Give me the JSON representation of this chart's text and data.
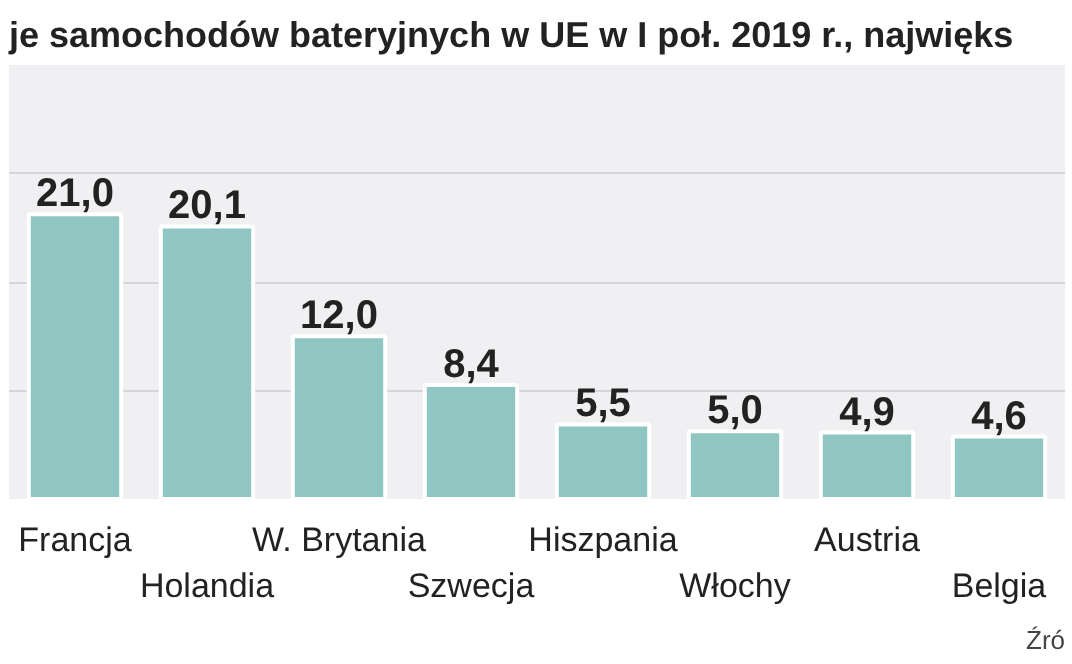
{
  "chart_data": {
    "type": "bar",
    "title": "je samochodów bateryjnych w UE w I poł. 2019 r., najwięks",
    "categories": [
      "Francja",
      "Holandia",
      "W. Brytania",
      "Szwecja",
      "Hiszpania",
      "Włochy",
      "Austria",
      "Belgia"
    ],
    "values": [
      21.0,
      20.1,
      12.0,
      8.4,
      5.5,
      5.0,
      4.9,
      4.6
    ],
    "value_labels": [
      "21,0",
      "20,1",
      "12,0",
      "8,4",
      "5,5",
      "5,0",
      "4,9",
      "4,6"
    ],
    "color": "#8fc6c2",
    "ylim": [
      0,
      32
    ],
    "yticks": [
      {
        "value": 8,
        "label": null
      },
      {
        "value": 16,
        "label": null
      },
      {
        "value": 24,
        "label": null
      }
    ],
    "grid": "y",
    "tick_labels": "x",
    "annotations": [
      "Źró"
    ]
  }
}
